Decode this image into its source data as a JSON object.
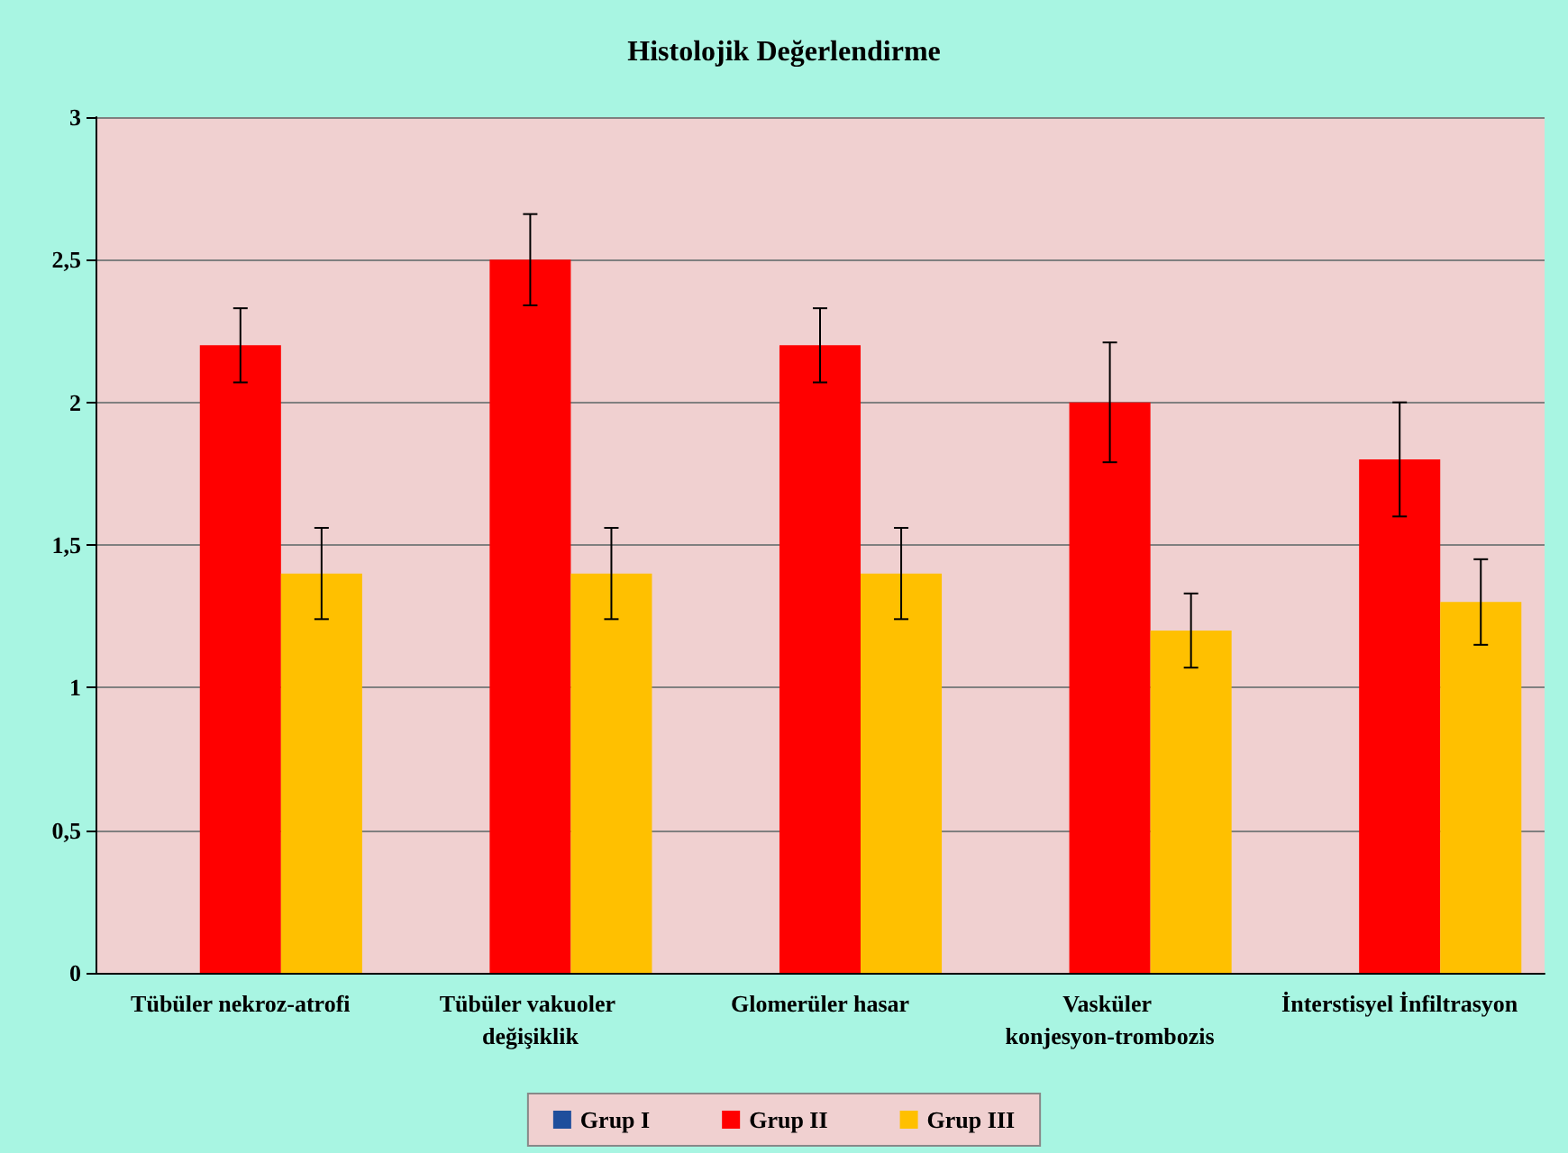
{
  "chart_data": {
    "type": "bar",
    "title": "Histolojik Değerlendirme",
    "categories": [
      "Tübüler nekroz-atrofi",
      "Tübüler vakuoler değişiklik",
      "Glomerüler hasar",
      "Vasküler konjesyon-trombozis",
      "İnterstisyel İnfiltrasyon"
    ],
    "series": [
      {
        "name": "Grup I",
        "color": "#1f4e9c",
        "values": [
          0,
          0,
          0,
          0,
          0
        ]
      },
      {
        "name": "Grup II",
        "color": "#ff0000",
        "values": [
          2.2,
          2.5,
          2.2,
          2.0,
          1.8
        ],
        "errors": [
          0.13,
          0.16,
          0.13,
          0.21,
          0.2
        ]
      },
      {
        "name": "Grup III",
        "color": "#ffc000",
        "values": [
          1.4,
          1.4,
          1.4,
          1.2,
          1.3
        ],
        "errors": [
          0.16,
          0.16,
          0.16,
          0.13,
          0.15
        ]
      }
    ],
    "ylim": [
      0,
      3
    ],
    "yticks": [
      0,
      {
        "value": 0.5,
        "label": "0,5"
      },
      1,
      {
        "value": 1.5,
        "label": "1,5"
      },
      2,
      {
        "value": 2.5,
        "label": "2,5"
      },
      3
    ],
    "grid": "y",
    "legend": "bottom"
  }
}
